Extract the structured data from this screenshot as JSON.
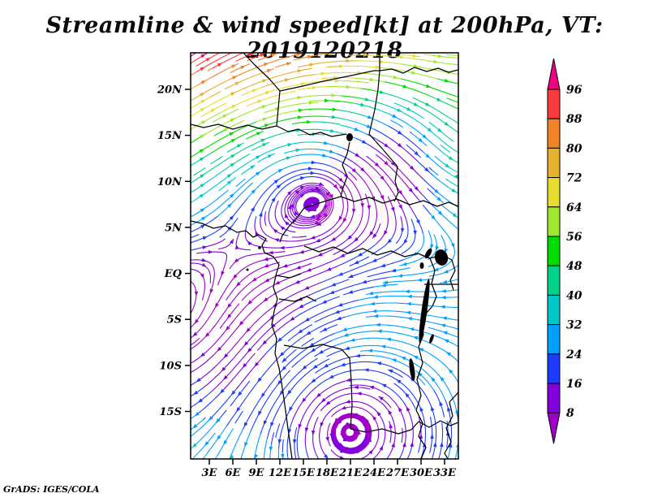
{
  "title": "Streamline & wind speed[kt] at 200hPa, VT: 2019120218",
  "attribution": "GrADS: IGES/COLA",
  "chart_data": {
    "type": "streamline-map",
    "title": "Streamline & wind speed[kt] at 200hPa, VT: 2019120218",
    "variable": "wind speed",
    "units": "kt",
    "pressure_level": "200hPa",
    "valid_time": "2019120218",
    "x_tick_labels": [
      "3E",
      "6E",
      "9E",
      "12E",
      "15E",
      "18E",
      "21E",
      "24E",
      "27E",
      "30E",
      "33E"
    ],
    "y_tick_labels": [
      "20N",
      "15N",
      "10N",
      "5N",
      "EQ",
      "5S",
      "10S",
      "15S"
    ],
    "grid": false,
    "legend_position": "right",
    "colorbar": {
      "levels": [
        8,
        16,
        24,
        32,
        40,
        48,
        56,
        64,
        72,
        80,
        88,
        96
      ],
      "colors": [
        "#a000c8",
        "#8200dc",
        "#1e3cff",
        "#00a0ff",
        "#00c8c8",
        "#00d28c",
        "#00dc00",
        "#a0e632",
        "#e6dc32",
        "#e6af2d",
        "#f08228",
        "#fa3c3c",
        "#f00082"
      ]
    },
    "flow_features": [
      {
        "type": "jet",
        "region": "north of 18N",
        "direction": "southwest to northeast",
        "speed_kt": "64 to 96+"
      },
      {
        "type": "closed circulation",
        "lon": "16E",
        "lat": "8N",
        "center_speed_kt": "8-16"
      },
      {
        "type": "closed circulation",
        "lon": "20E",
        "lat": "17S",
        "center_speed_kt": "8-16"
      },
      {
        "type": "slow saddle region",
        "lon": "25E",
        "lat": "12N",
        "center_speed_kt": "8-16"
      },
      {
        "type": "easterly flow",
        "region": "south of equator near west coast",
        "speed_kt": "8-24"
      }
    ]
  }
}
